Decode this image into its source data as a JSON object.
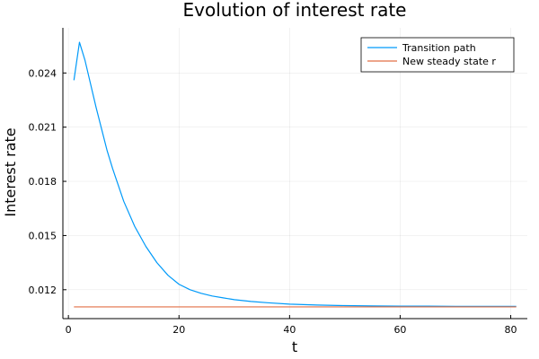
{
  "chart_data": {
    "type": "line",
    "title": "Evolution of interest rate",
    "xlabel": "t",
    "ylabel": "Interest rate",
    "xlim": [
      -1,
      83
    ],
    "ylim": [
      0.0104,
      0.0265
    ],
    "x_ticks": [
      0,
      20,
      40,
      60,
      80
    ],
    "x_tick_labels": [
      "0",
      "20",
      "40",
      "60",
      "80"
    ],
    "y_ticks": [
      0.012,
      0.015,
      0.018,
      0.021,
      0.024
    ],
    "y_tick_labels": [
      "0.012",
      "0.015",
      "0.018",
      "0.021",
      "0.024"
    ],
    "grid": true,
    "legend_position": "top-right",
    "series": [
      {
        "name": "Transition path",
        "color": "#009af9",
        "x": [
          1,
          2,
          3,
          4,
          5,
          6,
          7,
          8,
          9,
          10,
          12,
          14,
          16,
          18,
          20,
          22,
          24,
          26,
          28,
          30,
          33,
          36,
          40,
          45,
          50,
          55,
          60,
          65,
          70,
          75,
          81
        ],
        "y": [
          0.0236,
          0.0257,
          0.0247,
          0.0234,
          0.0221,
          0.0209,
          0.0197,
          0.0187,
          0.0178,
          0.0169,
          0.0155,
          0.0144,
          0.0135,
          0.0128,
          0.0123,
          0.012,
          0.0118,
          0.01165,
          0.01155,
          0.01145,
          0.01135,
          0.01128,
          0.0112,
          0.01115,
          0.01112,
          0.0111,
          0.01109,
          0.01109,
          0.01108,
          0.01108,
          0.01108
        ]
      },
      {
        "name": "New steady state r",
        "color": "#e26f46",
        "x": [
          1,
          81
        ],
        "y": [
          0.01105,
          0.01105
        ]
      }
    ]
  }
}
